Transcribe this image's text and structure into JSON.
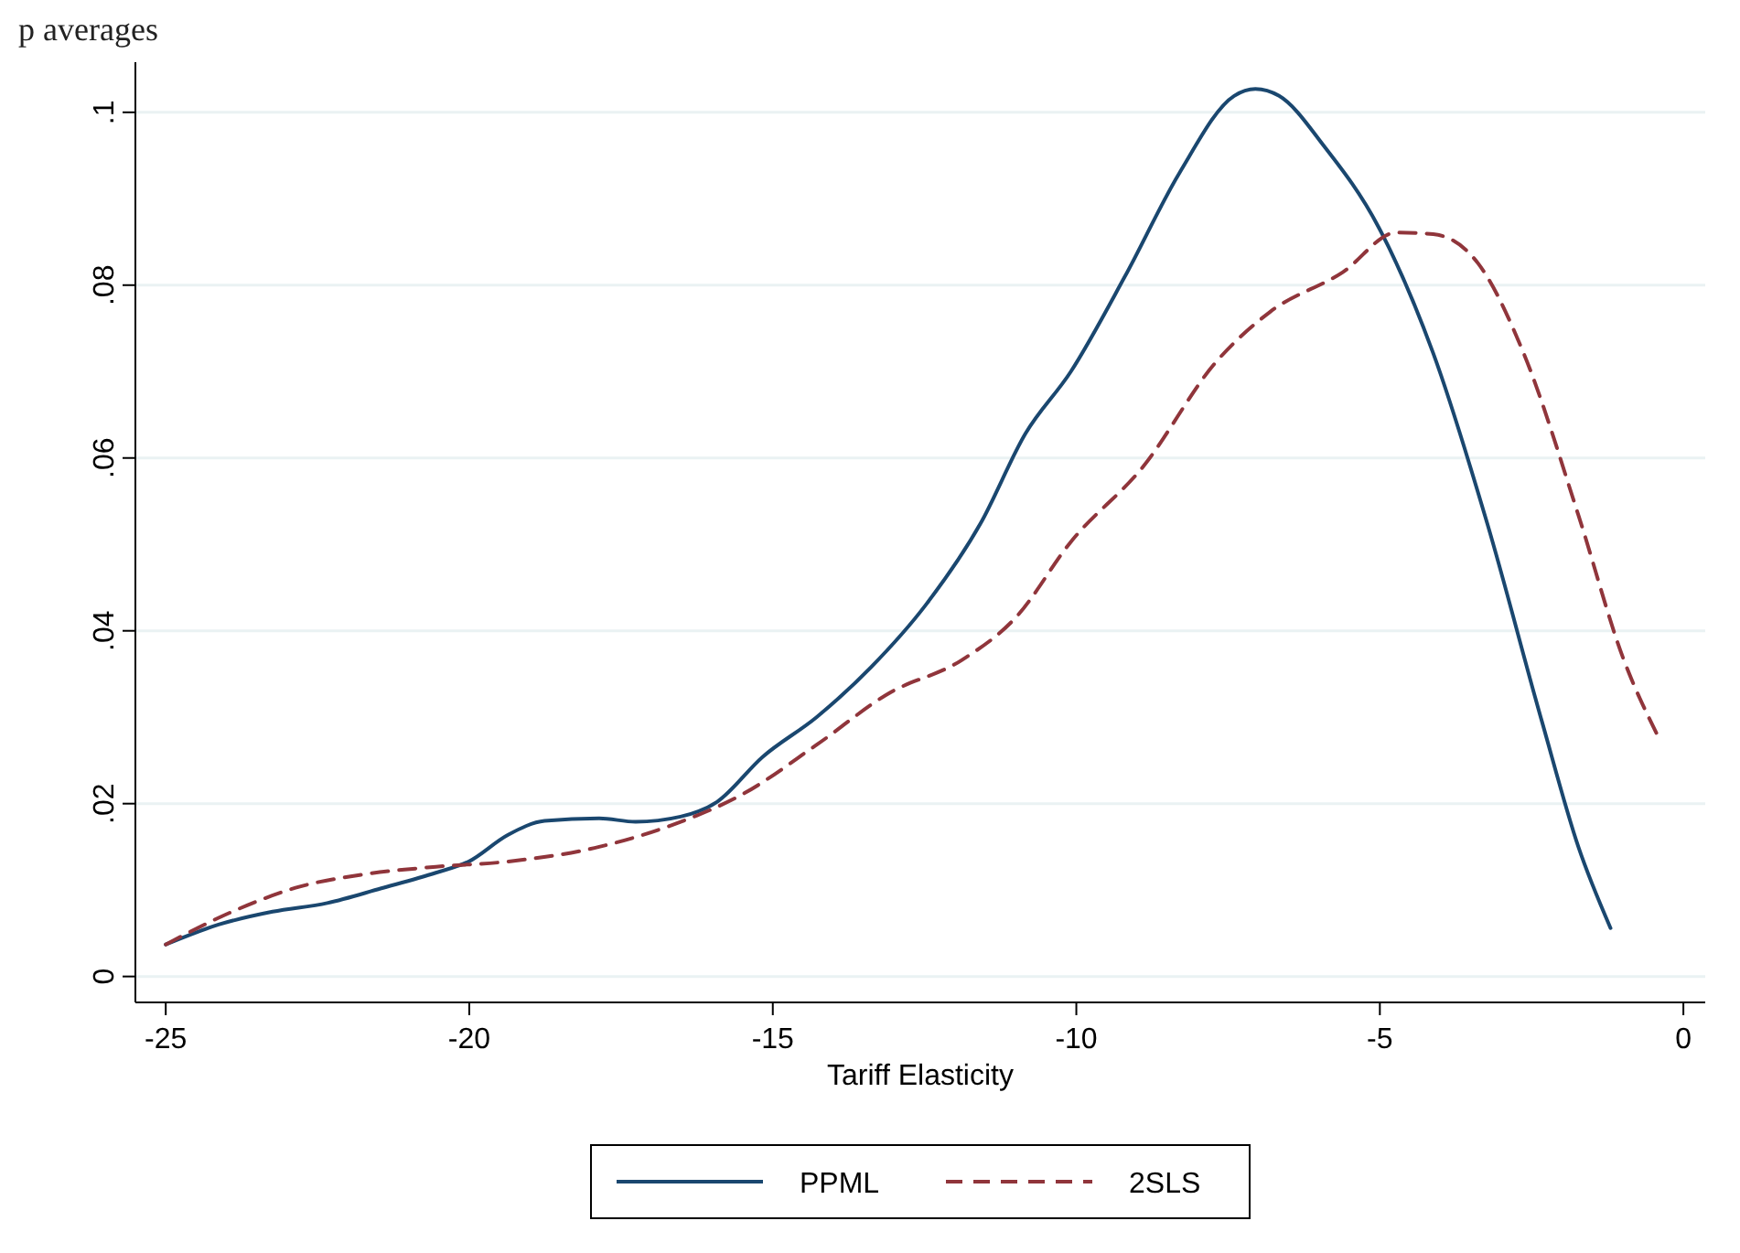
{
  "chart_data": {
    "type": "line",
    "title": "p averages",
    "xlabel": "Tariff Elasticity",
    "xlim": [
      -25.5,
      0.36
    ],
    "ylim": [
      -0.003,
      0.1058
    ],
    "xticks": [
      -25,
      -20,
      -15,
      -10,
      -5,
      0
    ],
    "yticks": [
      {
        "value": 0,
        "label": "0"
      },
      {
        "value": 0.02,
        "label": ".02"
      },
      {
        "value": 0.04,
        "label": ".04"
      },
      {
        "value": 0.06,
        "label": ".06"
      },
      {
        "value": 0.08,
        "label": ".08"
      },
      {
        "value": 0.1,
        "label": ".1"
      }
    ],
    "grid": "y",
    "legend": "bottom",
    "series": [
      {
        "name": "PPML",
        "color": "#1a476f",
        "line_style": "solid",
        "x": [
          -25,
          -24.13,
          -23.24,
          -22.34,
          -21.45,
          -20.55,
          -20.01,
          -19.36,
          -18.76,
          -17.86,
          -17.26,
          -16.52,
          -15.92,
          -15.17,
          -14.28,
          -13.38,
          -12.48,
          -11.58,
          -10.84,
          -10.09,
          -9.2,
          -8.3,
          -7.4,
          -7.05,
          -6.66,
          -5.91,
          -5.02,
          -4.12,
          -3.23,
          -2.33,
          -1.73,
          -1.2
        ],
        "values": [
          0.0037,
          0.006,
          0.0075,
          0.0085,
          0.0102,
          0.012,
          0.0133,
          0.0164,
          0.018,
          0.0183,
          0.0179,
          0.0185,
          0.0202,
          0.0254,
          0.03,
          0.0358,
          0.043,
          0.0524,
          0.0628,
          0.07,
          0.081,
          0.093,
          0.1019,
          0.1027,
          0.1019,
          0.096,
          0.0867,
          0.0721,
          0.0524,
          0.0295,
          0.015,
          0.0056
        ]
      },
      {
        "name": "2SLS",
        "color": "#90353b",
        "line_style": "dashed",
        "x": [
          -25,
          -23.84,
          -22.79,
          -21.75,
          -20.55,
          -19.36,
          -17.86,
          -16.67,
          -15.47,
          -14.28,
          -13.08,
          -11.89,
          -10.99,
          -10.09,
          -8.9,
          -7.7,
          -6.81,
          -5.61,
          -4.72,
          -4.12,
          -3.38,
          -2.63,
          -1.73,
          -0.99,
          -0.39
        ],
        "values": [
          0.0037,
          0.0077,
          0.0104,
          0.0118,
          0.0127,
          0.0133,
          0.015,
          0.0175,
          0.0212,
          0.0268,
          0.0328,
          0.0366,
          0.0416,
          0.0503,
          0.059,
          0.0711,
          0.0769,
          0.0815,
          0.0861,
          0.0859,
          0.0825,
          0.0721,
          0.0534,
          0.0368,
          0.0274
        ]
      }
    ]
  }
}
